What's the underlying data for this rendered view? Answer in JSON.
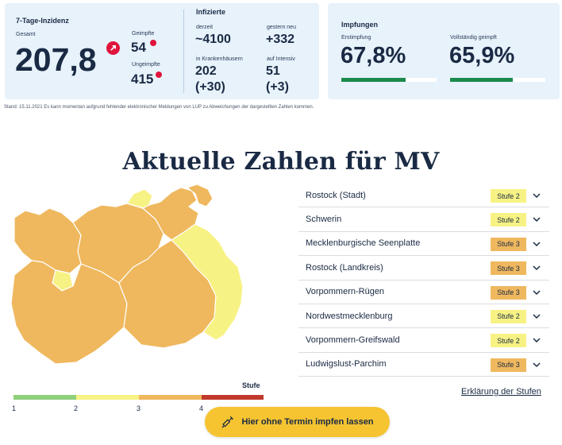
{
  "stats": {
    "inzidenz": {
      "title": "7-Tage-Inzidenz",
      "gesamt_label": "Gesamt",
      "gesamt_value": "207,8",
      "trend_icon": "arrow-up-right-icon",
      "geimpfte_label": "Geimpfte",
      "geimpfte_value": "54",
      "ungeimpfte_label": "Ungeimpfte",
      "ungeimpfte_value": "415"
    },
    "infizierte": {
      "title": "Infizierte",
      "derzeit_label": "derzeit",
      "derzeit_value": "~4100",
      "gestern_label": "gestern neu",
      "gestern_value": "+332",
      "kh_label": "in Krankenhäusern",
      "kh_value": "202",
      "kh_delta": "(+30)",
      "intensiv_label": "auf Intensiv",
      "intensiv_value": "51",
      "intensiv_delta": "(+3)"
    },
    "impfungen": {
      "title": "Impfungen",
      "erst_label": "Erstimpfung",
      "erst_value": "67,8%",
      "erst_progress": 0.678,
      "voll_label": "Vollständig geimpft",
      "voll_value": "65,9%",
      "voll_progress": 0.659
    }
  },
  "stand_text": "Stand: 15.11.2021 Es kann momentan aufgrund fehlender elektronischer Meldungen von LUP zu Abweichungen der dargestellten Zahlen kommen.",
  "heading": "Aktuelle Zahlen für MV",
  "regions": [
    {
      "name": "Rostock (Stadt)",
      "stufe": "Stufe 2",
      "level": 2
    },
    {
      "name": "Schwerin",
      "stufe": "Stufe 2",
      "level": 2
    },
    {
      "name": "Mecklenburgische Seenplatte",
      "stufe": "Stufe 3",
      "level": 3
    },
    {
      "name": "Rostock (Landkreis)",
      "stufe": "Stufe 3",
      "level": 3
    },
    {
      "name": "Vorpommern-Rügen",
      "stufe": "Stufe 3",
      "level": 3
    },
    {
      "name": "Nordwestmecklenburg",
      "stufe": "Stufe 2",
      "level": 2
    },
    {
      "name": "Vorpommern-Greifswald",
      "stufe": "Stufe 2",
      "level": 2
    },
    {
      "name": "Ludwigslust-Parchim",
      "stufe": "Stufe 3",
      "level": 3
    }
  ],
  "legend": {
    "title": "Stufe",
    "ticks": [
      "1",
      "2",
      "3",
      "4"
    ],
    "colors": [
      "#8fd07a",
      "#f7f284",
      "#efb85e",
      "#c0392b"
    ]
  },
  "colors": {
    "stufe2": "#f7f284",
    "stufe3": "#efb85e",
    "accent_red": "#e0143c",
    "progress_green": "#1b8a4c",
    "cta_yellow": "#f6c431"
  },
  "explain_link": "Erklärung der Stufen",
  "cta": {
    "label": "Hier ohne Termin impfen lassen",
    "icon": "syringe-icon"
  }
}
